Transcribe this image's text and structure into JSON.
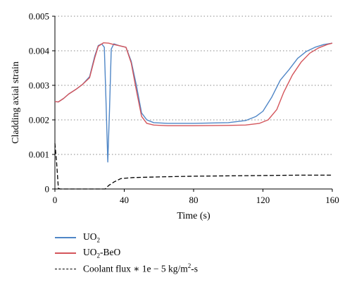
{
  "chart_data": {
    "type": "line",
    "xlabel": "Time (s)",
    "ylabel": "Cladding axial strain",
    "xlim": [
      0,
      160
    ],
    "ylim": [
      0,
      0.005
    ],
    "x_ticks": [
      "0",
      "40",
      "80",
      "120",
      "160"
    ],
    "y_ticks": [
      "0",
      "0.001",
      "0.002",
      "0.003",
      "0.004",
      "0.005"
    ],
    "grid": "horizontal dotted",
    "legend_position": "below",
    "series": [
      {
        "name": "UO2",
        "color": "#4f86c6",
        "style": "solid",
        "points": [
          [
            0,
            0.00253
          ],
          [
            2,
            0.00252
          ],
          [
            5,
            0.00262
          ],
          [
            8,
            0.00275
          ],
          [
            12,
            0.00288
          ],
          [
            16,
            0.00303
          ],
          [
            20,
            0.00325
          ],
          [
            23,
            0.00385
          ],
          [
            25,
            0.00415
          ],
          [
            27,
            0.0042
          ],
          [
            28.5,
            0.0041
          ],
          [
            29.5,
            0.0025
          ],
          [
            30.5,
            0.00078
          ],
          [
            31.5,
            0.0023
          ],
          [
            32.5,
            0.00405
          ],
          [
            34,
            0.0042
          ],
          [
            37,
            0.00415
          ],
          [
            41,
            0.0041
          ],
          [
            44,
            0.0037
          ],
          [
            47,
            0.003
          ],
          [
            50,
            0.0022
          ],
          [
            53,
            0.002
          ],
          [
            57,
            0.00192
          ],
          [
            65,
            0.0019
          ],
          [
            80,
            0.0019
          ],
          [
            100,
            0.00192
          ],
          [
            110,
            0.00198
          ],
          [
            116,
            0.0021
          ],
          [
            120,
            0.00225
          ],
          [
            125,
            0.00265
          ],
          [
            130,
            0.00315
          ],
          [
            135,
            0.00345
          ],
          [
            140,
            0.00378
          ],
          [
            145,
            0.00398
          ],
          [
            150,
            0.0041
          ],
          [
            155,
            0.00418
          ],
          [
            160,
            0.00422
          ]
        ]
      },
      {
        "name": "UO2-BeO",
        "color": "#d4555b",
        "style": "solid",
        "points": [
          [
            0,
            0.00253
          ],
          [
            2,
            0.00252
          ],
          [
            5,
            0.00262
          ],
          [
            8,
            0.00275
          ],
          [
            12,
            0.00288
          ],
          [
            16,
            0.00303
          ],
          [
            20,
            0.00322
          ],
          [
            23,
            0.0038
          ],
          [
            25,
            0.00413
          ],
          [
            28,
            0.00423
          ],
          [
            31,
            0.00422
          ],
          [
            34,
            0.00418
          ],
          [
            37,
            0.00415
          ],
          [
            41,
            0.0041
          ],
          [
            44,
            0.00365
          ],
          [
            47,
            0.00285
          ],
          [
            50,
            0.0021
          ],
          [
            53,
            0.0019
          ],
          [
            57,
            0.00185
          ],
          [
            65,
            0.00183
          ],
          [
            80,
            0.00183
          ],
          [
            100,
            0.00184
          ],
          [
            110,
            0.00185
          ],
          [
            118,
            0.0019
          ],
          [
            123,
            0.002
          ],
          [
            128,
            0.0023
          ],
          [
            132,
            0.0028
          ],
          [
            137,
            0.0033
          ],
          [
            142,
            0.00367
          ],
          [
            147,
            0.00393
          ],
          [
            152,
            0.00408
          ],
          [
            157,
            0.00418
          ],
          [
            160,
            0.00422
          ]
        ]
      },
      {
        "name": "Coolant flux * 1e − 5 kg/m2-s",
        "color": "#000000",
        "style": "dashed",
        "points": [
          [
            0,
            0.00132
          ],
          [
            1,
            0.00075
          ],
          [
            2,
            2e-05
          ],
          [
            3,
            0.0
          ],
          [
            29,
            0.0
          ],
          [
            31,
            0.0001
          ],
          [
            34,
            0.0002
          ],
          [
            38,
            0.0003
          ],
          [
            45,
            0.00033
          ],
          [
            60,
            0.00035
          ],
          [
            80,
            0.00037
          ],
          [
            100,
            0.00038
          ],
          [
            120,
            0.00039
          ],
          [
            140,
            0.0004
          ],
          [
            160,
            0.0004
          ]
        ]
      }
    ]
  },
  "legend": {
    "uo2": {
      "main": "UO",
      "sub": "2",
      "tail": ""
    },
    "uo2beo": {
      "main": "UO",
      "sub": "2",
      "tail": "-BeO"
    },
    "coolant": {
      "main": "Coolant flux ∗ 1e − 5 kg/m",
      "sup": "2",
      "tail": "-s"
    }
  }
}
